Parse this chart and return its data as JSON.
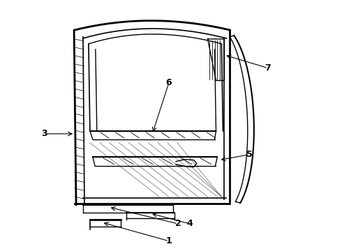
{
  "background_color": "#ffffff",
  "line_color": "#000000",
  "label_color": "#000000",
  "figsize": [
    4.9,
    3.6
  ],
  "dpi": 100
}
